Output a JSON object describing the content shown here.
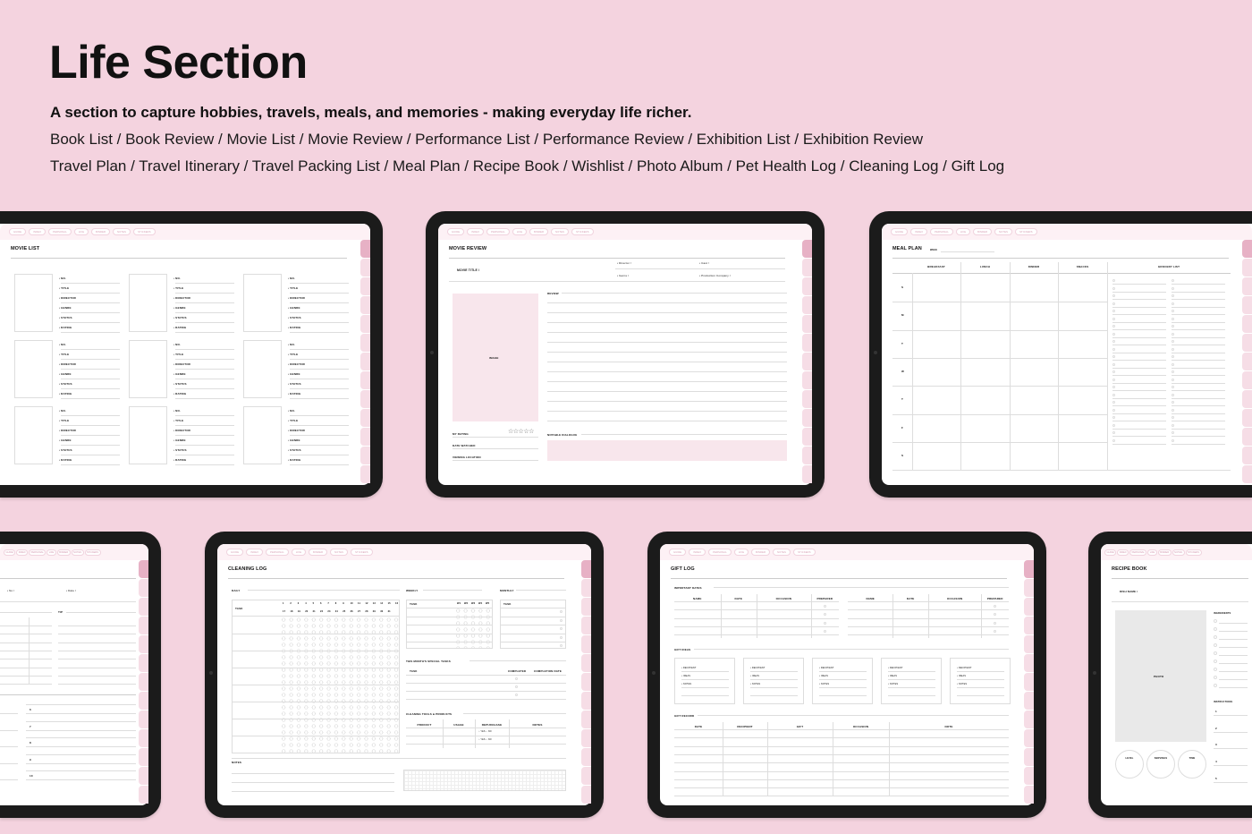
{
  "header": {
    "title": "Life Section",
    "subtitle": "A section to capture hobbies, travels, meals, and memories - making everyday life richer.",
    "line1": "Book List / Book Review / Movie List / Movie Review / Performance List / Performance Review / Exhibition List / Exhibition Review",
    "line2": "Travel Plan / Travel Itinerary / Travel Packing List / Meal Plan / Recipe Book / Wishlist / Photo Album / Pet Health Log / Cleaning Log / Gift Log"
  },
  "colors": {
    "background": "#f4d3df",
    "bezel": "#1b1b1b",
    "nav": "#fdf1f5",
    "tab_active": "#e7b1c5",
    "tab": "#f6dde6",
    "image_box": "#f8e6ec"
  },
  "nav_items": [
    "GUIDE",
    "INDEX",
    "PERSONAL",
    "LIFE",
    "BINDER",
    "NOTES",
    "STICKERS"
  ],
  "nav_icons": [
    "calendar-icon",
    "home-icon",
    "settings-icon",
    "link-icon"
  ],
  "movie_list": {
    "title": "MOVIE LIST",
    "fields": [
      "NO.",
      "TITLE",
      "DIRECTOR",
      "GENRE",
      "STATUS",
      "RATING"
    ]
  },
  "movie_review": {
    "title": "MOVIE REVIEW",
    "movie_title": "MOVIE TITLE",
    "fields": [
      "Director",
      "Cast",
      "Genre",
      "Production Company"
    ],
    "review": "REVIEW",
    "image": "IMAGE",
    "my_rating": "MY RATING",
    "stars": "☆☆☆☆☆",
    "date_watched": "DATE WATCHED",
    "viewing_location": "VIEWING LOCATION",
    "notable_dialogue": "NOTABLE DIALOGUE"
  },
  "meal_plan": {
    "title": "MEAL PLAN",
    "week": "WEEK",
    "columns": [
      "BREAKFAST",
      "LUNCH",
      "DINNER",
      "SNACKS",
      "GROCERY LIST"
    ],
    "days": [
      "S",
      "M",
      "T",
      "W",
      "T",
      "F",
      "S"
    ]
  },
  "travel": {
    "fields": [
      "No",
      "Date"
    ],
    "tip": "TIP",
    "numbers": [
      "6",
      "7",
      "8",
      "9",
      "10"
    ]
  },
  "cleaning_log": {
    "title": "CLEANING LOG",
    "daily": "DAILY",
    "weekly": "WEEKLY",
    "monthly": "MONTHLY",
    "task": "TASK",
    "days_row1": [
      "1",
      "2",
      "3",
      "4",
      "5",
      "6",
      "7",
      "8",
      "9",
      "10",
      "11",
      "12",
      "13",
      "14",
      "15",
      "16"
    ],
    "days_row2": [
      "17",
      "18",
      "19",
      "20",
      "21",
      "22",
      "23",
      "24",
      "25",
      "26",
      "27",
      "28",
      "29",
      "30",
      "31"
    ],
    "weeks": [
      "W1",
      "W2",
      "W3",
      "W4",
      "W5"
    ],
    "special_tasks": "THIS MONTH'S SPECIAL TASKS",
    "special_cols": [
      "TASK",
      "COMPLETED",
      "COMPLETION DATE"
    ],
    "tools": "CLEANING TOOLS & PRODUCTS",
    "tools_cols": [
      "PRODUCT",
      "USAGE",
      "REPURCHASE",
      "NOTES"
    ],
    "yes": "YES",
    "no": "NO",
    "notes": "NOTES"
  },
  "gift_log": {
    "title": "GIFT LOG",
    "important_dates": "IMPORTANT DATES",
    "date_cols": [
      "NAME",
      "DATE",
      "OCCASION",
      "PREPARED"
    ],
    "gift_ideas": "GIFT IDEAS",
    "idea_fields": [
      "RECIPIENT",
      "IDEAS",
      "NOTES"
    ],
    "gift_record": "GIFT RECORD",
    "record_cols": [
      "DATE",
      "RECIPIENT",
      "GIFT",
      "OCCASION",
      "NOTE"
    ]
  },
  "recipe_book": {
    "title": "RECIPE BOOK",
    "dish_name": "DISH NAME",
    "photo": "PHOTO",
    "circles": [
      "LEVEL",
      "SERVINGS",
      "TIME"
    ],
    "ingredients": "INGREDIENTS",
    "instructions": "INSTRUCTIONS",
    "steps": [
      "1",
      "2",
      "3",
      "4",
      "5"
    ]
  }
}
